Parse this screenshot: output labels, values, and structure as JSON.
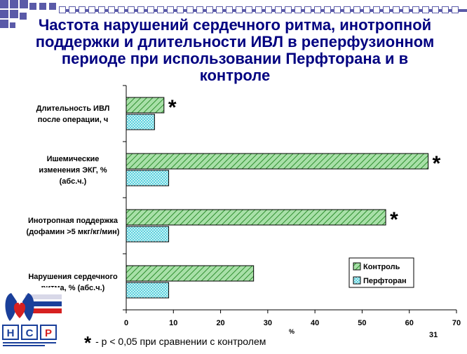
{
  "title_lines": [
    "Частота нарушений сердечного ритма, инотропной",
    "поддержки и длительности ИВЛ в реперфузионном",
    "периоде при использовании Перфторана и в",
    "контроле"
  ],
  "footnote": {
    "symbol": "*",
    "text": "-  p < 0,05 при сравнении с контролем"
  },
  "page_number": "31",
  "logo": {
    "text": "НСР"
  },
  "colors": {
    "title": "#000080",
    "control_fill": "#a8e0a8",
    "control_hatch": "#2f8f2f",
    "perftoran_fill": "#d8f8f8",
    "perftoran_hatch": "#40c8d8",
    "corner_squares": "#5a5aa8"
  },
  "chart_data": {
    "type": "bar",
    "orientation": "horizontal",
    "xlabel": "%",
    "xlim": [
      0,
      70
    ],
    "xticks": [
      0,
      10,
      20,
      30,
      40,
      50,
      60,
      70
    ],
    "categories": [
      [
        "Длительность ИВЛ",
        "после операции, ч"
      ],
      [
        "Ишемические",
        "изменения ЭКГ, %",
        "(абс.ч.)"
      ],
      [
        "Инотропная поддержка",
        "(дофамин >5 мкг/кг/мин)"
      ],
      [
        "Нарушения сердечного",
        "ритма, % (абс.ч.)"
      ]
    ],
    "series": [
      {
        "name": "Контроль",
        "values": [
          8,
          64,
          55,
          27
        ],
        "significance": [
          "*",
          "*",
          "*",
          ""
        ]
      },
      {
        "name": "Перфторан",
        "values": [
          6,
          9,
          9,
          9
        ]
      }
    ],
    "legend": "bottom-right",
    "grid": false
  }
}
